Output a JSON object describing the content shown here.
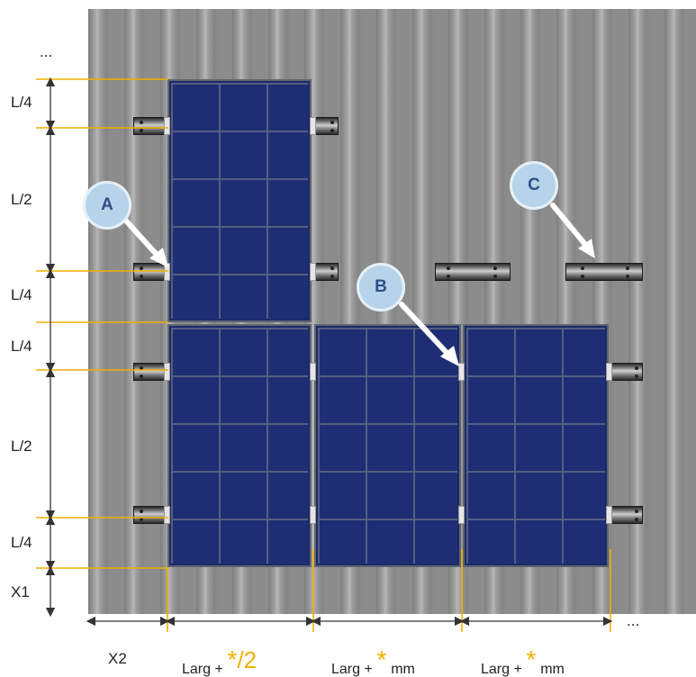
{
  "top_ellipsis": "...",
  "right_ellipsis": "...",
  "vertical_dims": [
    "L/4",
    "L/2",
    "L/4",
    "L/4",
    "L/2",
    "L/4",
    "X1"
  ],
  "horizontal_dims": {
    "x2": "X2",
    "larg_half_prefix": "Larg +",
    "larg_half_star": "*",
    "larg_half_suffix": "/2",
    "larg_mm_prefix_1": "Larg +",
    "larg_mm_star_1": "*",
    "larg_mm_unit_1": "mm",
    "larg_mm_prefix_2": "Larg +",
    "larg_mm_star_2": "*",
    "larg_mm_unit_2": "mm"
  },
  "callouts": {
    "a": "A",
    "b": "B",
    "c": "C"
  },
  "colors": {
    "accent": "#f0b000",
    "panel": "#1c2a6b",
    "badge": "#b7d3ea",
    "roof": "#8b8b8b"
  }
}
